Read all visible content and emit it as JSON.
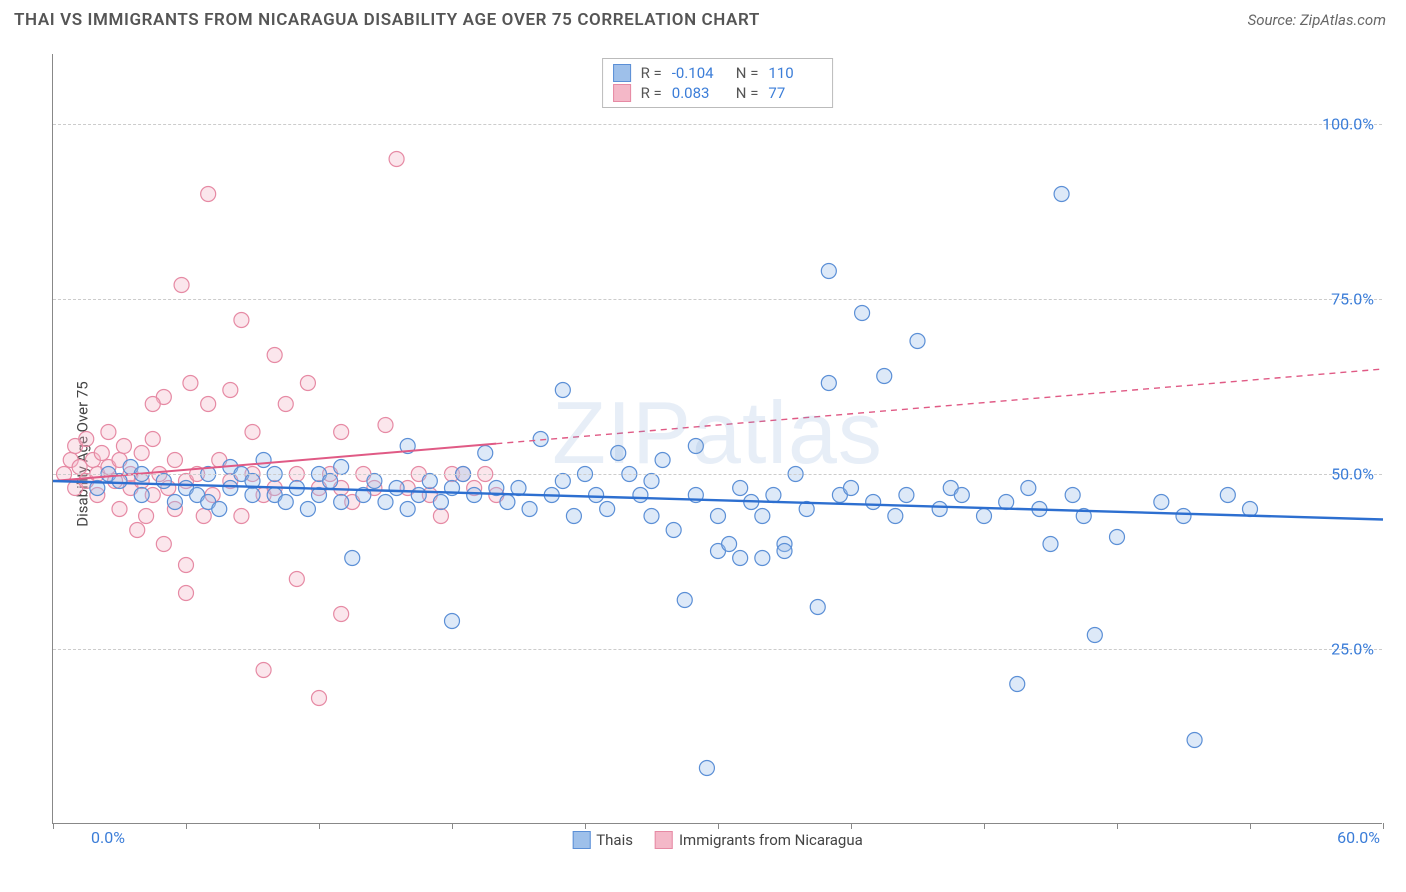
{
  "header": {
    "title": "THAI VS IMMIGRANTS FROM NICARAGUA DISABILITY AGE OVER 75 CORRELATION CHART",
    "source": "Source: ZipAtlas.com"
  },
  "ylabel": "Disability Age Over 75",
  "watermark": {
    "part1": "ZIP",
    "part2": "atlas"
  },
  "chart": {
    "type": "scatter",
    "xlim": [
      0,
      60
    ],
    "ylim": [
      0,
      110
    ],
    "y_ticks": [
      25,
      50,
      75,
      100
    ],
    "y_tick_labels": [
      "25.0%",
      "50.0%",
      "75.0%",
      "100.0%"
    ],
    "x_ticks": [
      0,
      6,
      12,
      18,
      24,
      30,
      36,
      42,
      48,
      54,
      60
    ],
    "x_min_label": "0.0%",
    "x_max_label": "60.0%",
    "background_color": "#ffffff",
    "grid_color": "#cccccc",
    "axis_color": "#888888",
    "label_color": "#3b7dd8",
    "marker_radius": 7.5,
    "marker_stroke_width": 1.2,
    "marker_fill_opacity": 0.35,
    "series": {
      "a": {
        "label": "Thais",
        "color_stroke": "#5b8fd6",
        "color_fill": "#9ec0ea",
        "R_label": "R =",
        "R_value": "-0.104",
        "N_label": "N =",
        "N_value": "110",
        "trend": {
          "x1": 0,
          "y1": 49,
          "x2": 60,
          "y2": 43.5,
          "solid_until_x": 60,
          "width": 2.4
        },
        "points": [
          [
            2,
            48
          ],
          [
            2.5,
            50
          ],
          [
            3,
            49
          ],
          [
            3.5,
            51
          ],
          [
            4,
            47
          ],
          [
            4,
            50
          ],
          [
            5,
            49
          ],
          [
            5.5,
            46
          ],
          [
            6,
            48
          ],
          [
            6.5,
            47
          ],
          [
            7,
            50
          ],
          [
            7,
            46
          ],
          [
            7.5,
            45
          ],
          [
            8,
            48
          ],
          [
            8,
            51
          ],
          [
            8.5,
            50
          ],
          [
            9,
            49
          ],
          [
            9,
            47
          ],
          [
            9.5,
            52
          ],
          [
            10,
            47
          ],
          [
            10,
            50
          ],
          [
            10.5,
            46
          ],
          [
            11,
            48
          ],
          [
            11.5,
            45
          ],
          [
            12,
            50
          ],
          [
            12,
            47
          ],
          [
            12.5,
            49
          ],
          [
            13,
            46
          ],
          [
            13,
            51
          ],
          [
            13.5,
            38
          ],
          [
            14,
            47
          ],
          [
            14.5,
            49
          ],
          [
            15,
            46
          ],
          [
            15.5,
            48
          ],
          [
            16,
            45
          ],
          [
            16,
            54
          ],
          [
            16.5,
            47
          ],
          [
            17,
            49
          ],
          [
            17.5,
            46
          ],
          [
            18,
            48
          ],
          [
            18,
            29
          ],
          [
            18.5,
            50
          ],
          [
            19,
            47
          ],
          [
            19.5,
            53
          ],
          [
            20,
            48
          ],
          [
            20.5,
            46
          ],
          [
            21,
            48
          ],
          [
            21.5,
            45
          ],
          [
            22,
            55
          ],
          [
            22.5,
            47
          ],
          [
            23,
            49
          ],
          [
            23,
            62
          ],
          [
            23.5,
            44
          ],
          [
            24,
            50
          ],
          [
            24.5,
            47
          ],
          [
            25,
            45
          ],
          [
            25.5,
            53
          ],
          [
            26,
            50
          ],
          [
            26.5,
            47
          ],
          [
            27,
            49
          ],
          [
            27,
            44
          ],
          [
            27.5,
            52
          ],
          [
            28,
            42
          ],
          [
            28.5,
            32
          ],
          [
            29,
            47
          ],
          [
            29,
            54
          ],
          [
            29.5,
            8
          ],
          [
            30,
            44
          ],
          [
            30,
            39
          ],
          [
            30.5,
            40
          ],
          [
            31,
            48
          ],
          [
            31,
            38
          ],
          [
            31.5,
            46
          ],
          [
            32,
            38
          ],
          [
            32,
            44
          ],
          [
            32.5,
            47
          ],
          [
            33,
            40
          ],
          [
            33,
            39
          ],
          [
            33.5,
            50
          ],
          [
            34,
            45
          ],
          [
            34.5,
            31
          ],
          [
            35,
            63
          ],
          [
            35,
            79
          ],
          [
            35.5,
            47
          ],
          [
            36,
            48
          ],
          [
            36.5,
            73
          ],
          [
            37,
            46
          ],
          [
            37.5,
            64
          ],
          [
            38,
            44
          ],
          [
            38.5,
            47
          ],
          [
            39,
            69
          ],
          [
            40,
            45
          ],
          [
            40.5,
            48
          ],
          [
            41,
            47
          ],
          [
            42,
            44
          ],
          [
            43,
            46
          ],
          [
            43.5,
            20
          ],
          [
            44,
            48
          ],
          [
            44.5,
            45
          ],
          [
            45,
            40
          ],
          [
            45.5,
            90
          ],
          [
            46,
            47
          ],
          [
            46.5,
            44
          ],
          [
            47,
            27
          ],
          [
            48,
            41
          ],
          [
            50,
            46
          ],
          [
            51,
            44
          ],
          [
            51.5,
            12
          ],
          [
            53,
            47
          ],
          [
            54,
            45
          ]
        ]
      },
      "b": {
        "label": "Immigrants from Nicaragua",
        "color_stroke": "#e68aa4",
        "color_fill": "#f4b8c8",
        "R_label": "R =",
        "R_value": "0.083",
        "N_label": "N =",
        "N_value": "77",
        "trend": {
          "x1": 0,
          "y1": 49,
          "x2": 60,
          "y2": 65,
          "solid_until_x": 20,
          "width": 2.0
        },
        "points": [
          [
            0.5,
            50
          ],
          [
            0.8,
            52
          ],
          [
            1,
            48
          ],
          [
            1,
            54
          ],
          [
            1.2,
            51
          ],
          [
            1.5,
            49
          ],
          [
            1.5,
            55
          ],
          [
            1.8,
            52
          ],
          [
            2,
            50
          ],
          [
            2,
            47
          ],
          [
            2.2,
            53
          ],
          [
            2.5,
            51
          ],
          [
            2.5,
            56
          ],
          [
            2.8,
            49
          ],
          [
            3,
            52
          ],
          [
            3,
            45
          ],
          [
            3.2,
            54
          ],
          [
            3.5,
            48
          ],
          [
            3.5,
            50
          ],
          [
            3.8,
            42
          ],
          [
            4,
            53
          ],
          [
            4,
            49
          ],
          [
            4.2,
            44
          ],
          [
            4.5,
            55
          ],
          [
            4.5,
            47
          ],
          [
            4.8,
            50
          ],
          [
            5,
            61
          ],
          [
            5,
            40
          ],
          [
            5.2,
            48
          ],
          [
            5.5,
            52
          ],
          [
            5.5,
            45
          ],
          [
            5.8,
            77
          ],
          [
            6,
            49
          ],
          [
            6,
            37
          ],
          [
            6.2,
            63
          ],
          [
            6.5,
            50
          ],
          [
            6.8,
            44
          ],
          [
            7,
            60
          ],
          [
            7,
            90
          ],
          [
            7.2,
            47
          ],
          [
            7.5,
            52
          ],
          [
            8,
            62
          ],
          [
            8,
            49
          ],
          [
            8.5,
            72
          ],
          [
            8.5,
            44
          ],
          [
            9,
            50
          ],
          [
            9,
            56
          ],
          [
            9.5,
            47
          ],
          [
            9.5,
            22
          ],
          [
            10,
            67
          ],
          [
            10,
            48
          ],
          [
            10.5,
            60
          ],
          [
            11,
            50
          ],
          [
            11,
            35
          ],
          [
            11.5,
            63
          ],
          [
            12,
            48
          ],
          [
            12,
            18
          ],
          [
            12.5,
            50
          ],
          [
            13,
            48
          ],
          [
            13,
            56
          ],
          [
            13.5,
            46
          ],
          [
            14,
            50
          ],
          [
            14.5,
            48
          ],
          [
            15,
            57
          ],
          [
            15.5,
            95
          ],
          [
            16,
            48
          ],
          [
            16.5,
            50
          ],
          [
            17,
            47
          ],
          [
            17.5,
            44
          ],
          [
            18,
            50
          ],
          [
            18.5,
            50
          ],
          [
            19,
            48
          ],
          [
            19.5,
            50
          ],
          [
            20,
            47
          ],
          [
            13,
            30
          ],
          [
            6,
            33
          ],
          [
            4.5,
            60
          ]
        ]
      }
    }
  }
}
